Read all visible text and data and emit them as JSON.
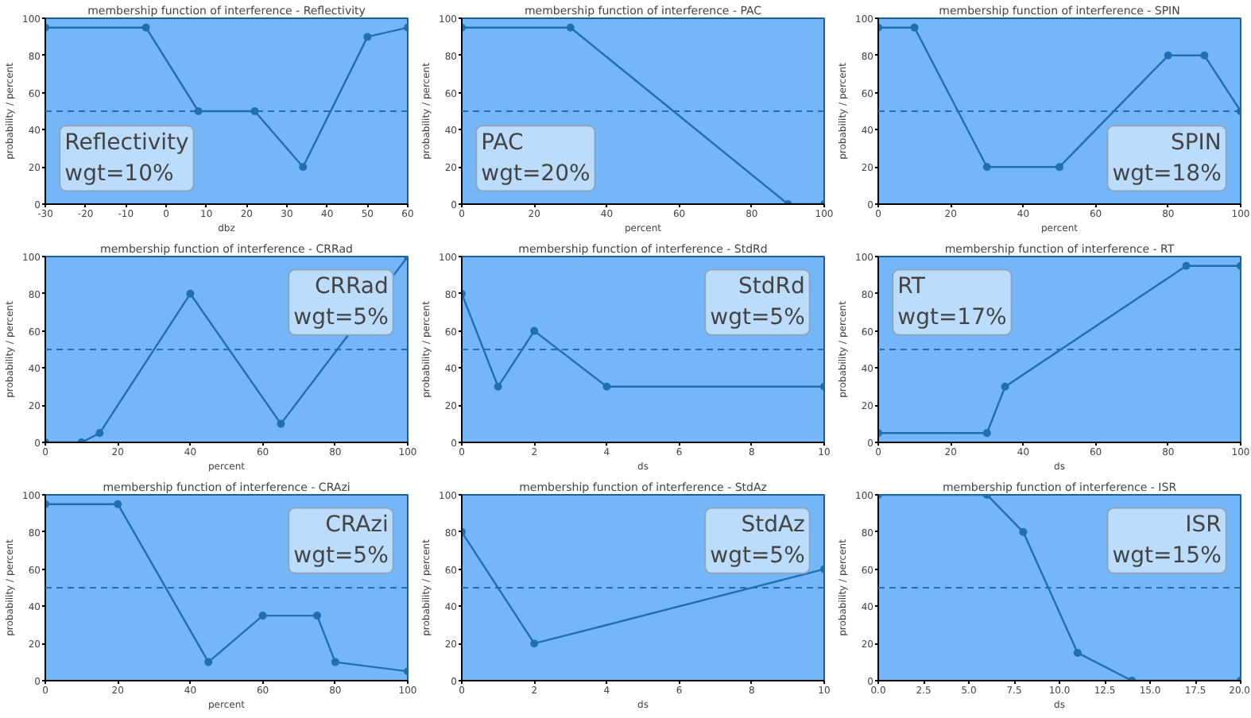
{
  "chart_data": [
    {
      "type": "line",
      "title": "membership function of interference - Reflectivity",
      "xlabel": "dbz",
      "ylabel": "probability / percent",
      "x": [
        -30,
        -5,
        8,
        22,
        34,
        50,
        60
      ],
      "series": [
        {
          "color": "#1f6fb4",
          "values": [
            95,
            95,
            50,
            50,
            20,
            90,
            95
          ]
        }
      ],
      "xlim": [
        -30,
        60
      ],
      "ylim": [
        0,
        100
      ],
      "xticks": [
        -30,
        -20,
        -10,
        0,
        10,
        20,
        30,
        40,
        50,
        60
      ],
      "yticks": [
        0,
        20,
        40,
        60,
        80,
        100
      ],
      "marker": "circle",
      "ref_lines": [
        {
          "axis": "y",
          "value": 50,
          "line_style": "dashed"
        }
      ],
      "annotations": [
        "Reflectivity\nwgt=10%"
      ]
    },
    {
      "type": "line",
      "title": "membership function of interference - PAC",
      "xlabel": "percent",
      "ylabel": "probability / percent",
      "x": [
        0,
        30,
        90,
        100
      ],
      "series": [
        {
          "color": "#1f6fb4",
          "values": [
            95,
            95,
            0,
            0
          ]
        }
      ],
      "xlim": [
        0,
        100
      ],
      "ylim": [
        0,
        100
      ],
      "xticks": [
        0,
        20,
        40,
        60,
        80,
        100
      ],
      "yticks": [
        0,
        20,
        40,
        60,
        80,
        100
      ],
      "marker": "circle",
      "ref_lines": [
        {
          "axis": "y",
          "value": 50,
          "line_style": "dashed"
        }
      ],
      "annotations": [
        "PAC\nwgt=20%"
      ]
    },
    {
      "type": "line",
      "title": "membership function of interference - SPIN",
      "xlabel": "percent",
      "ylabel": "probability / percent",
      "x": [
        0,
        10,
        30,
        50,
        80,
        90,
        100
      ],
      "series": [
        {
          "color": "#1f6fb4",
          "values": [
            95,
            95,
            20,
            20,
            80,
            80,
            50
          ]
        }
      ],
      "xlim": [
        0,
        100
      ],
      "ylim": [
        0,
        100
      ],
      "xticks": [
        0,
        20,
        40,
        60,
        80,
        100
      ],
      "yticks": [
        0,
        20,
        40,
        60,
        80,
        100
      ],
      "marker": "circle",
      "ref_lines": [
        {
          "axis": "y",
          "value": 50,
          "line_style": "dashed"
        }
      ],
      "annotations": [
        "SPIN\nwgt=18%"
      ]
    },
    {
      "type": "line",
      "title": "membership function of interference - CRRad",
      "xlabel": "percent",
      "ylabel": "probability / percent",
      "x": [
        0,
        10,
        15,
        40,
        65,
        100
      ],
      "series": [
        {
          "color": "#1f6fb4",
          "values": [
            0,
            0,
            5,
            80,
            10,
            100
          ]
        }
      ],
      "xlim": [
        0,
        100
      ],
      "ylim": [
        0,
        100
      ],
      "xticks": [
        0,
        20,
        40,
        60,
        80,
        100
      ],
      "yticks": [
        0,
        20,
        40,
        60,
        80,
        100
      ],
      "marker": "circle",
      "ref_lines": [
        {
          "axis": "y",
          "value": 50,
          "line_style": "dashed"
        }
      ],
      "annotations": [
        "CRRad\nwgt=5%"
      ]
    },
    {
      "type": "line",
      "title": "membership function of interference - StdRd",
      "xlabel": "ds",
      "ylabel": "probability / percent",
      "x": [
        0,
        1,
        2,
        4,
        10
      ],
      "series": [
        {
          "color": "#1f6fb4",
          "values": [
            80,
            30,
            60,
            30,
            30
          ]
        }
      ],
      "xlim": [
        0,
        10
      ],
      "ylim": [
        0,
        100
      ],
      "xticks": [
        0,
        2,
        4,
        6,
        8,
        10
      ],
      "yticks": [
        0,
        20,
        40,
        60,
        80,
        100
      ],
      "marker": "circle",
      "ref_lines": [
        {
          "axis": "y",
          "value": 50,
          "line_style": "dashed"
        }
      ],
      "annotations": [
        "StdRd\nwgt=5%"
      ]
    },
    {
      "type": "line",
      "title": "membership function of interference - RT",
      "xlabel": "ds",
      "ylabel": "probability / percent",
      "x": [
        0,
        30,
        35,
        85,
        100
      ],
      "series": [
        {
          "color": "#1f6fb4",
          "values": [
            5,
            5,
            30,
            95,
            95
          ]
        }
      ],
      "xlim": [
        0,
        100
      ],
      "ylim": [
        0,
        100
      ],
      "xticks": [
        0,
        20,
        40,
        60,
        80,
        100
      ],
      "yticks": [
        0,
        20,
        40,
        60,
        80,
        100
      ],
      "marker": "circle",
      "ref_lines": [
        {
          "axis": "y",
          "value": 50,
          "line_style": "dashed"
        }
      ],
      "annotations": [
        "RT\nwgt=17%"
      ]
    },
    {
      "type": "line",
      "title": "membership function of interference - CRAzi",
      "xlabel": "percent",
      "ylabel": "probability / percent",
      "x": [
        0,
        20,
        45,
        60,
        75,
        80,
        100
      ],
      "series": [
        {
          "color": "#1f6fb4",
          "values": [
            95,
            95,
            10,
            35,
            35,
            10,
            5
          ]
        }
      ],
      "xlim": [
        0,
        100
      ],
      "ylim": [
        0,
        100
      ],
      "xticks": [
        0,
        20,
        40,
        60,
        80,
        100
      ],
      "yticks": [
        0,
        20,
        40,
        60,
        80,
        100
      ],
      "marker": "circle",
      "ref_lines": [
        {
          "axis": "y",
          "value": 50,
          "line_style": "dashed"
        }
      ],
      "annotations": [
        "CRAzi\nwgt=5%"
      ]
    },
    {
      "type": "line",
      "title": "membership function of interference - StdAz",
      "xlabel": "ds",
      "ylabel": "probability / percent",
      "x": [
        0,
        2,
        10
      ],
      "series": [
        {
          "color": "#1f6fb4",
          "values": [
            80,
            20,
            60
          ]
        }
      ],
      "xlim": [
        0,
        10
      ],
      "ylim": [
        0,
        100
      ],
      "xticks": [
        0,
        2,
        4,
        6,
        8,
        10
      ],
      "yticks": [
        0,
        20,
        40,
        60,
        80,
        100
      ],
      "marker": "circle",
      "ref_lines": [
        {
          "axis": "y",
          "value": 50,
          "line_style": "dashed"
        }
      ],
      "annotations": [
        "StdAz\nwgt=5%"
      ]
    },
    {
      "type": "line",
      "title": "membership function of interference - ISR",
      "xlabel": "ds",
      "ylabel": "probability / percent",
      "x": [
        0,
        6,
        8,
        11,
        14,
        20
      ],
      "series": [
        {
          "color": "#1f6fb4",
          "values": [
            100,
            100,
            80,
            15,
            0,
            0
          ]
        }
      ],
      "xlim": [
        0,
        20
      ],
      "ylim": [
        0,
        100
      ],
      "xticks": [
        {
          "value": 0,
          "label": "0.0"
        },
        {
          "value": 2.5,
          "label": "2.5"
        },
        {
          "value": 5,
          "label": "5.0"
        },
        {
          "value": 7.5,
          "label": "7.5"
        },
        {
          "value": 10,
          "label": "10.0"
        },
        {
          "value": 12.5,
          "label": "12.5"
        },
        {
          "value": 15,
          "label": "15.0"
        },
        {
          "value": 17.5,
          "label": "17.5"
        },
        {
          "value": 20,
          "label": "20.0"
        }
      ],
      "yticks": [
        0,
        20,
        40,
        60,
        80,
        100
      ],
      "marker": "circle",
      "ref_lines": [
        {
          "axis": "y",
          "value": 50,
          "line_style": "dashed"
        }
      ],
      "annotations": [
        "ISR\nwgt=15%"
      ]
    }
  ]
}
